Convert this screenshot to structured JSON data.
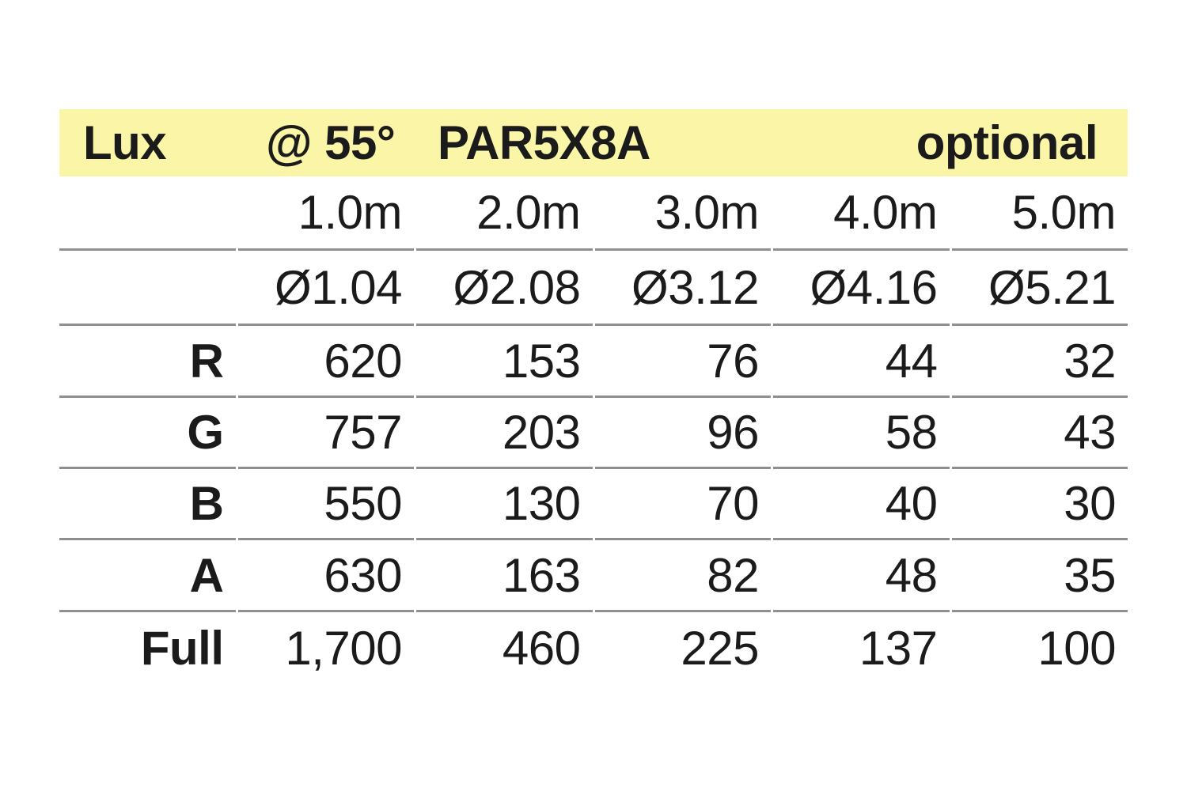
{
  "header": {
    "unit": "Lux",
    "beam_angle": "@ 55°",
    "model": "PAR5X8A",
    "note": "optional"
  },
  "colors": {
    "header_bg": "#FBF5A7",
    "text": "#1B1B1B",
    "separator_line": "#8F8F8F",
    "background": "#FFFFFF"
  },
  "chart_data": {
    "type": "table",
    "title": "Lux @ 55° PAR5X8A optional",
    "distance_headers": [
      "1.0m",
      "2.0m",
      "3.0m",
      "4.0m",
      "5.0m"
    ],
    "beam_diameters": [
      "Ø1.04",
      "Ø2.08",
      "Ø3.12",
      "Ø4.16",
      "Ø5.21"
    ],
    "rows": [
      {
        "label": "R",
        "values": [
          "620",
          "153",
          "76",
          "44",
          "32"
        ]
      },
      {
        "label": "G",
        "values": [
          "757",
          "203",
          "96",
          "58",
          "43"
        ]
      },
      {
        "label": "B",
        "values": [
          "550",
          "130",
          "70",
          "40",
          "30"
        ]
      },
      {
        "label": "A",
        "values": [
          "630",
          "163",
          "82",
          "48",
          "35"
        ]
      },
      {
        "label": "Full",
        "values": [
          "1,700",
          "460",
          "225",
          "137",
          "100"
        ]
      }
    ]
  }
}
